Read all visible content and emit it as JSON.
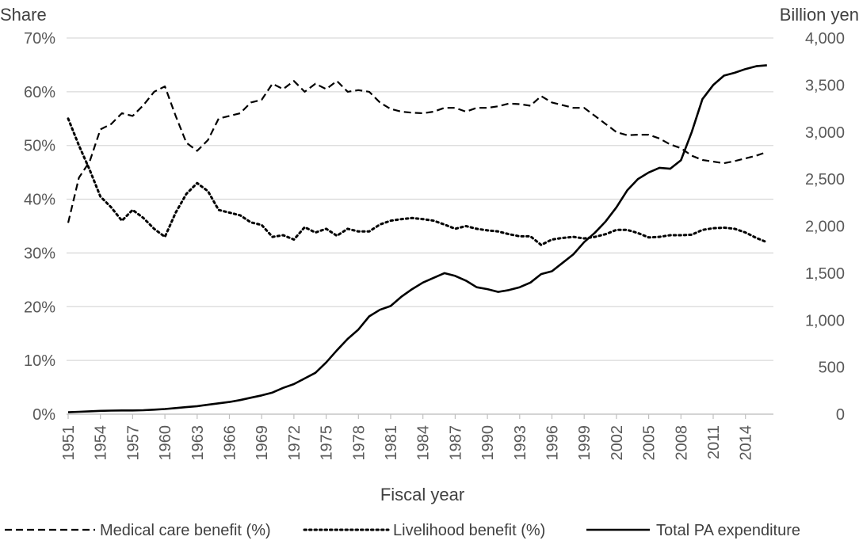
{
  "chart_data": {
    "type": "line",
    "title": "",
    "xlabel": "Fiscal year",
    "ylabel_left": "Share",
    "ylabel_right": "Billion yen",
    "xlim": [
      1951,
      2016
    ],
    "ylim_left": [
      0,
      70
    ],
    "ylim_right": [
      0,
      4000
    ],
    "grid": true,
    "legend_position": "bottom",
    "left_ticks": [
      "0%",
      "10%",
      "20%",
      "30%",
      "40%",
      "50%",
      "60%",
      "70%"
    ],
    "left_tick_values": [
      0,
      10,
      20,
      30,
      40,
      50,
      60,
      70
    ],
    "right_ticks": [
      "0",
      "500",
      "1,000",
      "1,500",
      "2,000",
      "2,500",
      "3,000",
      "3,500",
      "4,000"
    ],
    "right_tick_values": [
      0,
      500,
      1000,
      1500,
      2000,
      2500,
      3000,
      3500,
      4000
    ],
    "x_ticks": [
      "1951",
      "1954",
      "1957",
      "1960",
      "1963",
      "1966",
      "1969",
      "1972",
      "1975",
      "1978",
      "1981",
      "1984",
      "1987",
      "1990",
      "1993",
      "1996",
      "1999",
      "2002",
      "2005",
      "2008",
      "2011",
      "2014"
    ],
    "x": [
      1951,
      1952,
      1953,
      1954,
      1955,
      1956,
      1957,
      1958,
      1959,
      1960,
      1961,
      1962,
      1963,
      1964,
      1965,
      1966,
      1967,
      1968,
      1969,
      1970,
      1971,
      1972,
      1973,
      1974,
      1975,
      1976,
      1977,
      1978,
      1979,
      1980,
      1981,
      1982,
      1983,
      1984,
      1985,
      1986,
      1987,
      1988,
      1989,
      1990,
      1991,
      1992,
      1993,
      1994,
      1995,
      1996,
      1997,
      1998,
      1999,
      2000,
      2001,
      2002,
      2003,
      2004,
      2005,
      2006,
      2007,
      2008,
      2009,
      2010,
      2011,
      2012,
      2013,
      2014,
      2015,
      2016
    ],
    "series": [
      {
        "name": "Medical care benefit (%)",
        "axis": "left",
        "dash": "dashed",
        "values": [
          35.6,
          44.0,
          47.0,
          53.0,
          54.0,
          56.0,
          55.5,
          57.5,
          60.0,
          61.0,
          55.5,
          50.5,
          49.0,
          51.0,
          55.0,
          55.5,
          56.0,
          58.0,
          58.5,
          61.5,
          60.5,
          62.0,
          60.0,
          61.5,
          60.5,
          62.0,
          60.0,
          60.3,
          60.0,
          58.0,
          56.8,
          56.3,
          56.1,
          56.0,
          56.3,
          57.0,
          57.0,
          56.3,
          57.0,
          57.0,
          57.3,
          57.8,
          57.7,
          57.4,
          59.2,
          58.0,
          57.5,
          57.0,
          57.0,
          55.5,
          54.0,
          52.5,
          51.9,
          52.0,
          52.0,
          51.3,
          50.2,
          49.5,
          48.1,
          47.3,
          47.0,
          46.7,
          47.1,
          47.6,
          48.1,
          48.8
        ]
      },
      {
        "name": "Livelihood benefit (%)",
        "axis": "left",
        "dash": "dotted",
        "values": [
          55.0,
          50.0,
          45.5,
          40.5,
          38.5,
          36.0,
          38.0,
          36.5,
          34.5,
          33.0,
          37.5,
          41.0,
          43.0,
          41.5,
          38.0,
          37.5,
          37.0,
          35.7,
          35.2,
          33.0,
          33.3,
          32.5,
          34.8,
          33.8,
          34.5,
          33.2,
          34.5,
          34.0,
          34.0,
          35.3,
          36.0,
          36.3,
          36.5,
          36.3,
          36.0,
          35.3,
          34.5,
          35.0,
          34.5,
          34.2,
          34.0,
          33.5,
          33.1,
          33.1,
          31.5,
          32.5,
          32.8,
          33.0,
          32.7,
          33.0,
          33.5,
          34.3,
          34.3,
          33.7,
          32.9,
          33.0,
          33.3,
          33.3,
          33.4,
          34.3,
          34.6,
          34.7,
          34.5,
          33.8,
          32.8,
          32.0
        ]
      },
      {
        "name": "Total PA expenditure",
        "axis": "right",
        "dash": "solid",
        "values": [
          20,
          25,
          30,
          35,
          38,
          40,
          40,
          42,
          48,
          55,
          65,
          75,
          85,
          100,
          115,
          130,
          150,
          175,
          200,
          230,
          280,
          320,
          380,
          440,
          550,
          680,
          800,
          900,
          1040,
          1110,
          1150,
          1250,
          1330,
          1400,
          1450,
          1500,
          1470,
          1420,
          1350,
          1330,
          1300,
          1320,
          1350,
          1400,
          1490,
          1520,
          1610,
          1700,
          1830,
          1930,
          2050,
          2200,
          2380,
          2500,
          2570,
          2620,
          2610,
          2700,
          3000,
          3350,
          3500,
          3600,
          3630,
          3670,
          3700,
          3710
        ]
      }
    ]
  }
}
